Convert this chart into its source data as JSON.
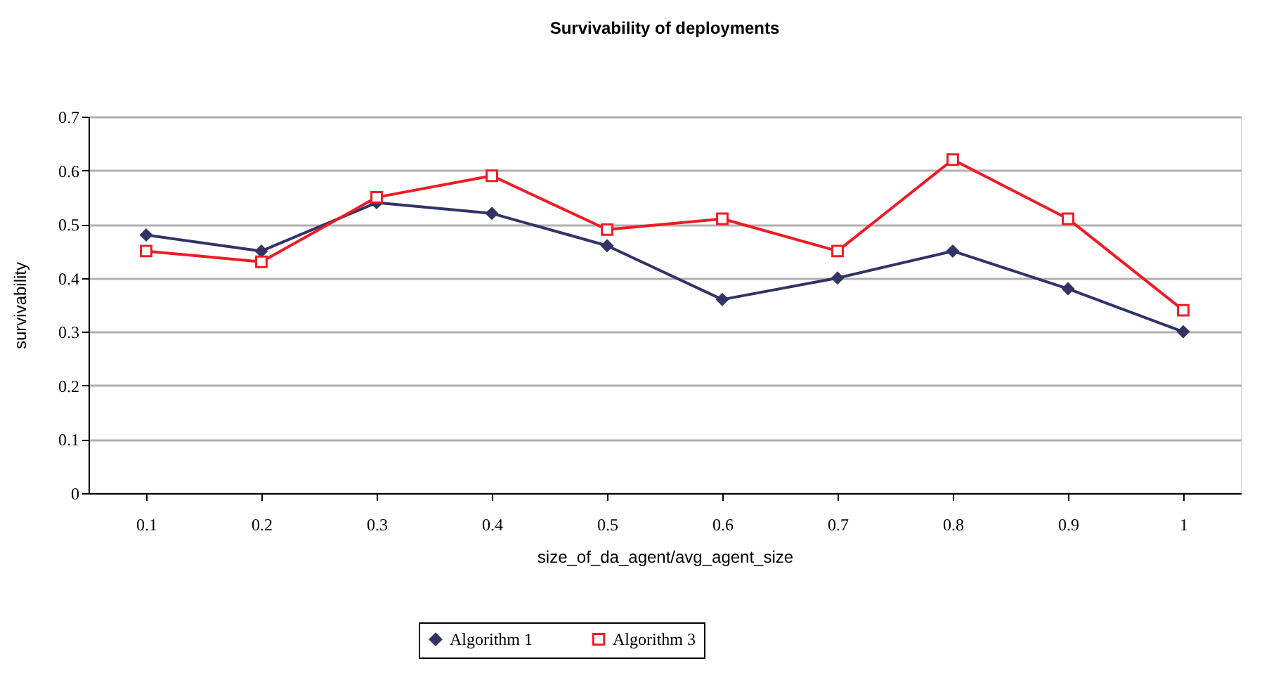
{
  "chart_data": {
    "type": "line",
    "title": "Survivability of deployments",
    "xlabel": "size_of_da_agent/avg_agent_size",
    "ylabel": "survivability",
    "categories": [
      "0.1",
      "0.2",
      "0.3",
      "0.4",
      "0.5",
      "0.6",
      "0.7",
      "0.8",
      "0.9",
      "1"
    ],
    "series": [
      {
        "name": "Algorithm 1",
        "color": "#333366",
        "marker": "diamond",
        "values": [
          0.48,
          0.45,
          0.54,
          0.52,
          0.46,
          0.36,
          0.4,
          0.45,
          0.38,
          0.3
        ]
      },
      {
        "name": "Algorithm 3",
        "color": "#ee1c25",
        "marker": "square",
        "values": [
          0.45,
          0.43,
          0.55,
          0.59,
          0.49,
          0.51,
          0.45,
          0.62,
          0.51,
          0.34
        ]
      }
    ],
    "ylim": [
      0,
      0.7
    ],
    "yticks": [
      0,
      0.1,
      0.2,
      0.3,
      0.4,
      0.5,
      0.6,
      0.7
    ],
    "grid": "y",
    "legend": "bottom"
  }
}
